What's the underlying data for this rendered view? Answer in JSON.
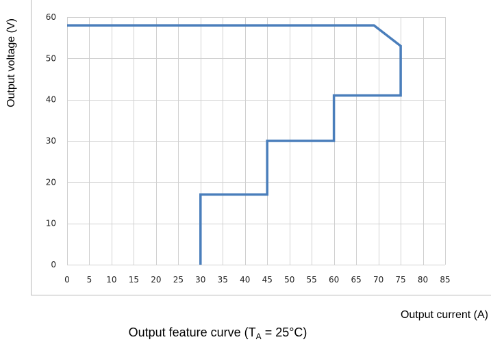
{
  "chart_data": {
    "type": "line",
    "title": "",
    "caption": {
      "prefix": "Output feature curve (T",
      "subscript": "A",
      "suffix": " = 25°C)"
    },
    "xlabel": "Output current (A)",
    "ylabel": "Output voltage (V)",
    "xlim": [
      0,
      85
    ],
    "ylim": [
      0,
      60
    ],
    "xticks": [
      "0",
      "5",
      "10",
      "15",
      "20",
      "25",
      "30",
      "35",
      "40",
      "45",
      "50",
      "55",
      "60",
      "65",
      "70",
      "75",
      "80",
      "85"
    ],
    "yticks": [
      "0",
      "10",
      "20",
      "30",
      "40",
      "50",
      "60"
    ],
    "grid": true,
    "legend": "none",
    "series": [
      {
        "x": [
          0,
          69,
          75,
          75,
          60,
          60,
          45,
          45,
          30,
          30
        ],
        "y": [
          58,
          58,
          53,
          41,
          41,
          30,
          30,
          17,
          17,
          0
        ]
      }
    ],
    "colors": {
      "line": "#4a7ebb",
      "grid": "#d0d0d0",
      "axis": "#b8b8b8"
    }
  }
}
